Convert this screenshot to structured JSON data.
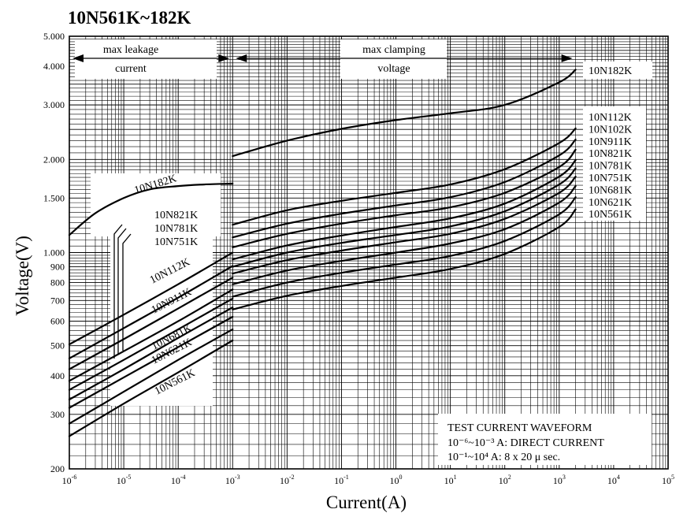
{
  "chart_data": {
    "type": "line",
    "title": "10N561K~182K",
    "xlabel": "Current(A)",
    "ylabel": "Voltage(V)",
    "x_scale": "log",
    "y_scale": "log",
    "xlim": [
      1e-06,
      100000.0
    ],
    "ylim": [
      200,
      5000
    ],
    "x_ticks": [
      {
        "base": "10",
        "exp": "-6"
      },
      {
        "base": "10",
        "exp": "-5"
      },
      {
        "base": "10",
        "exp": "-4"
      },
      {
        "base": "10",
        "exp": "-3"
      },
      {
        "base": "10",
        "exp": "-2"
      },
      {
        "base": "10",
        "exp": "-1"
      },
      {
        "base": "10",
        "exp": "0"
      },
      {
        "base": "10",
        "exp": "1"
      },
      {
        "base": "10",
        "exp": "2"
      },
      {
        "base": "10",
        "exp": "3"
      },
      {
        "base": "10",
        "exp": "4"
      },
      {
        "base": "10",
        "exp": "5"
      }
    ],
    "y_ticks": [
      {
        "v": 200,
        "label": "200"
      },
      {
        "v": 300,
        "label": "300"
      },
      {
        "v": 400,
        "label": "400"
      },
      {
        "v": 500,
        "label": "500"
      },
      {
        "v": 600,
        "label": "600"
      },
      {
        "v": 700,
        "label": "700"
      },
      {
        "v": 800,
        "label": "800"
      },
      {
        "v": 900,
        "label": "900"
      },
      {
        "v": 1000,
        "label": "1.000"
      },
      {
        "v": 1500,
        "label": "1.500"
      },
      {
        "v": 2000,
        "label": "2.000"
      },
      {
        "v": 3000,
        "label": "3.000"
      },
      {
        "v": 4000,
        "label": "4.000"
      },
      {
        "v": 5000,
        "label": "5.000"
      }
    ],
    "grid": true,
    "regions": [
      {
        "text": [
          "max leakage",
          "current"
        ],
        "from": 1e-06,
        "to": 0.001
      },
      {
        "text": [
          "max clamping",
          "voltage"
        ],
        "from": 0.001,
        "to": 2000
      }
    ],
    "series": [
      {
        "name": "10N182K",
        "leakage": [
          [
            1e-06,
            1140
          ],
          [
            3e-06,
            1340
          ],
          [
            1e-05,
            1500
          ],
          [
            3e-05,
            1600
          ],
          [
            0.0001,
            1640
          ],
          [
            0.0003,
            1660
          ],
          [
            0.001,
            1670
          ]
        ],
        "clamping": [
          [
            0.001,
            2050
          ],
          [
            0.01,
            2300
          ],
          [
            0.1,
            2510
          ],
          [
            1,
            2680
          ],
          [
            10,
            2820
          ],
          [
            100,
            3000
          ],
          [
            1000,
            3550
          ],
          [
            2000,
            3900
          ]
        ]
      },
      {
        "name": "10N112K",
        "leakage": [
          [
            1e-06,
            505
          ],
          [
            1e-05,
            630
          ],
          [
            0.0001,
            790
          ],
          [
            0.001,
            1000
          ]
        ],
        "clamping": [
          [
            0.001,
            1230
          ],
          [
            0.01,
            1370
          ],
          [
            0.1,
            1470
          ],
          [
            1,
            1560
          ],
          [
            10,
            1660
          ],
          [
            100,
            1860
          ],
          [
            1000,
            2260
          ],
          [
            2000,
            2520
          ]
        ]
      },
      {
        "name": "10N102K",
        "leakage": [
          [
            1e-06,
            455
          ],
          [
            1e-05,
            570
          ],
          [
            0.0001,
            715
          ],
          [
            0.001,
            905
          ]
        ],
        "clamping": [
          [
            0.001,
            1120
          ],
          [
            0.01,
            1240
          ],
          [
            0.1,
            1335
          ],
          [
            1,
            1420
          ],
          [
            10,
            1510
          ],
          [
            100,
            1690
          ],
          [
            1000,
            2060
          ],
          [
            2000,
            2320
          ]
        ]
      },
      {
        "name": "10N911K",
        "leakage": [
          [
            1e-06,
            420
          ],
          [
            1e-05,
            525
          ],
          [
            0.0001,
            660
          ],
          [
            0.001,
            830
          ]
        ],
        "clamping": [
          [
            0.001,
            1040
          ],
          [
            0.01,
            1150
          ],
          [
            0.1,
            1240
          ],
          [
            1,
            1320
          ],
          [
            10,
            1400
          ],
          [
            100,
            1560
          ],
          [
            1000,
            1890
          ],
          [
            2000,
            2150
          ]
        ]
      },
      {
        "name": "10N821K",
        "leakage": [
          [
            1e-06,
            385
          ],
          [
            1e-05,
            480
          ],
          [
            0.0001,
            600
          ],
          [
            0.001,
            760
          ]
        ],
        "clamping": [
          [
            0.001,
            950
          ],
          [
            0.01,
            1055
          ],
          [
            0.1,
            1135
          ],
          [
            1,
            1210
          ],
          [
            10,
            1290
          ],
          [
            100,
            1440
          ],
          [
            1000,
            1760
          ],
          [
            2000,
            1990
          ]
        ]
      },
      {
        "name": "10N781K",
        "leakage": [
          [
            1e-06,
            360
          ],
          [
            1e-05,
            450
          ],
          [
            0.0001,
            565
          ],
          [
            0.001,
            710
          ]
        ],
        "clamping": [
          [
            0.001,
            900
          ],
          [
            0.01,
            1000
          ],
          [
            0.1,
            1075
          ],
          [
            1,
            1140
          ],
          [
            10,
            1215
          ],
          [
            100,
            1360
          ],
          [
            1000,
            1660
          ],
          [
            2000,
            1870
          ]
        ]
      },
      {
        "name": "10N751K",
        "leakage": [
          [
            1e-06,
            335
          ],
          [
            1e-05,
            420
          ],
          [
            0.0001,
            530
          ],
          [
            0.001,
            665
          ]
        ],
        "clamping": [
          [
            0.001,
            855
          ],
          [
            0.01,
            945
          ],
          [
            0.1,
            1015
          ],
          [
            1,
            1080
          ],
          [
            10,
            1150
          ],
          [
            100,
            1285
          ],
          [
            1000,
            1560
          ],
          [
            2000,
            1760
          ]
        ]
      },
      {
        "name": "10N681K",
        "leakage": [
          [
            1e-06,
            315
          ],
          [
            1e-05,
            395
          ],
          [
            0.0001,
            495
          ],
          [
            0.001,
            620
          ]
        ],
        "clamping": [
          [
            0.001,
            790
          ],
          [
            0.01,
            875
          ],
          [
            0.1,
            940
          ],
          [
            1,
            1000
          ],
          [
            10,
            1070
          ],
          [
            100,
            1190
          ],
          [
            1000,
            1450
          ],
          [
            2000,
            1640
          ]
        ]
      },
      {
        "name": "10N621K",
        "leakage": [
          [
            1e-06,
            280
          ],
          [
            1e-05,
            355
          ],
          [
            0.0001,
            450
          ],
          [
            0.001,
            565
          ]
        ],
        "clamping": [
          [
            0.001,
            720
          ],
          [
            0.01,
            800
          ],
          [
            0.1,
            860
          ],
          [
            1,
            915
          ],
          [
            10,
            975
          ],
          [
            100,
            1090
          ],
          [
            1000,
            1330
          ],
          [
            2000,
            1510
          ]
        ]
      },
      {
        "name": "10N561K",
        "leakage": [
          [
            1e-06,
            255
          ],
          [
            1e-05,
            325
          ],
          [
            0.0001,
            410
          ],
          [
            0.001,
            520
          ]
        ],
        "clamping": [
          [
            0.001,
            655
          ],
          [
            0.01,
            725
          ],
          [
            0.1,
            780
          ],
          [
            1,
            830
          ],
          [
            10,
            885
          ],
          [
            100,
            990
          ],
          [
            1000,
            1210
          ],
          [
            2000,
            1380
          ]
        ]
      }
    ],
    "annotation": {
      "title": "TEST CURRENT WAVEFORM",
      "line1": "10⁻⁶~10⁻³ A: DIRECT CURRENT",
      "line2": "10⁻¹~10⁴  A: 8 x 20  μ sec."
    }
  }
}
